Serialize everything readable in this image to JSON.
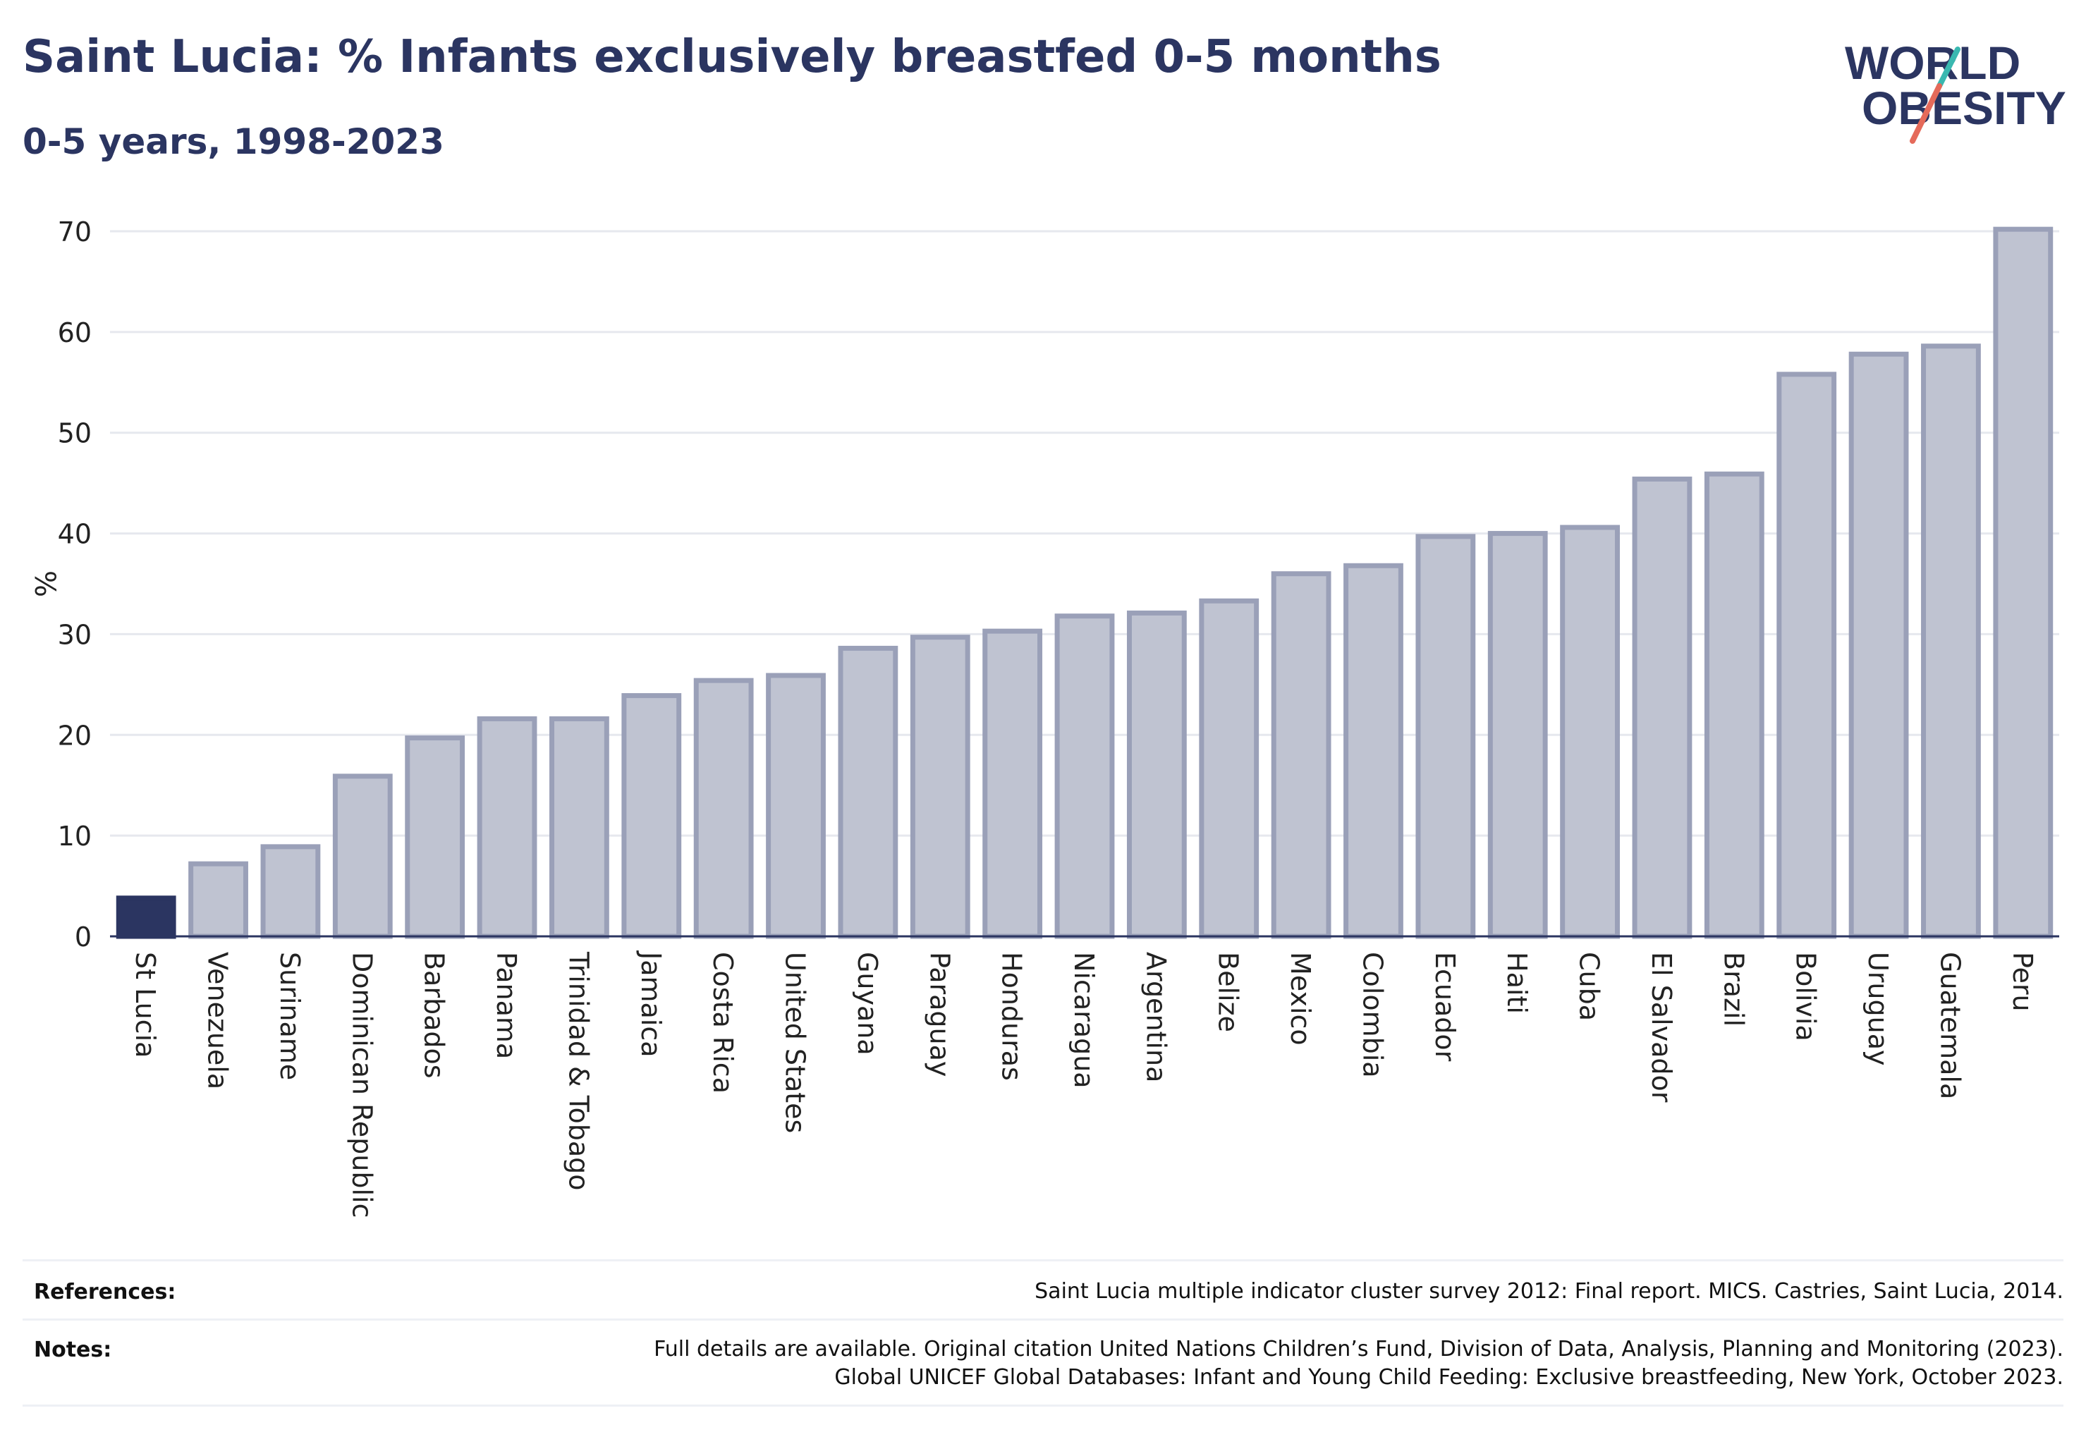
{
  "header": {
    "title": "Saint Lucia: % Infants exclusively breastfed 0-5 months",
    "subtitle": "0-5 years, 1998-2023"
  },
  "logo": {
    "line1": "WORLD",
    "line2": "OBESITY",
    "colors": {
      "text": "#2b3561",
      "slash_red": "#e56a5a",
      "slash_teal": "#3ab8b0"
    }
  },
  "colors": {
    "highlight": "#2b3561",
    "bar_fill": "#bfc3d1",
    "bar_stroke": "#9aa0b8",
    "grid": "#e6e8ee",
    "axis": "#2b3561"
  },
  "chart_data": {
    "type": "bar",
    "title": "Saint Lucia: % Infants exclusively breastfed 0-5 months",
    "subtitle": "0-5 years, 1998-2023",
    "xlabel": "",
    "ylabel": "%",
    "ylim": [
      0,
      70
    ],
    "yticks": [
      0,
      10,
      20,
      30,
      40,
      50,
      60,
      70
    ],
    "grid": true,
    "highlight": "St Lucia",
    "categories": [
      "St Lucia",
      "Venezuela",
      "Suriname",
      "Dominican Republic",
      "Barbados",
      "Panama",
      "Trinidad & Tobago",
      "Jamaica",
      "Costa Rica",
      "United States",
      "Guyana",
      "Paraguay",
      "Honduras",
      "Nicaragua",
      "Argentina",
      "Belize",
      "Mexico",
      "Colombia",
      "Ecuador",
      "Haiti",
      "Cuba",
      "El Salvador",
      "Brazil",
      "Bolivia",
      "Uruguay",
      "Guatemala",
      "Peru"
    ],
    "values": [
      3.8,
      7.2,
      8.9,
      15.9,
      19.7,
      21.6,
      21.6,
      23.9,
      25.4,
      25.9,
      28.6,
      29.7,
      30.3,
      31.8,
      32.1,
      33.3,
      36.0,
      36.8,
      39.7,
      40.0,
      40.6,
      45.4,
      45.9,
      55.8,
      57.8,
      58.6,
      70.2
    ]
  },
  "footer": {
    "references_label": "References:",
    "references_text": "Saint Lucia multiple indicator cluster survey 2012: Final report. MICS. Castries, Saint Lucia, 2014.",
    "notes_label": "Notes:",
    "notes_line1": "Full details are available. Original citation United Nations Children’s Fund, Division of Data, Analysis, Planning and Monitoring (2023).",
    "notes_line2": "Global UNICEF Global Databases: Infant and Young Child Feeding: Exclusive breastfeeding, New York, October 2023."
  }
}
